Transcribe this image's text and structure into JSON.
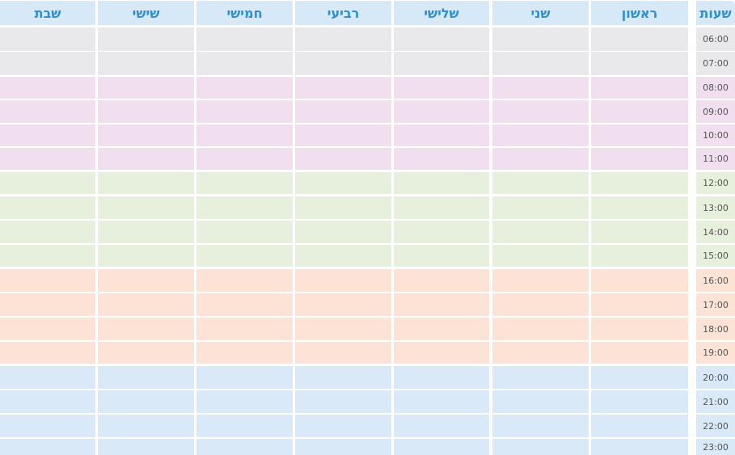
{
  "header": {
    "time_column": "שעות",
    "days": [
      "ראשון",
      "שני",
      "שלישי",
      "רביעי",
      "חמישי",
      "שישי",
      "שבת"
    ]
  },
  "times": [
    "06:00",
    "07:00",
    "08:00",
    "09:00",
    "10:00",
    "11:00",
    "12:00",
    "13:00",
    "14:00",
    "15:00",
    "16:00",
    "17:00",
    "18:00",
    "19:00",
    "20:00",
    "21:00",
    "22:00",
    "23:00"
  ],
  "row_colors": [
    "#e9e9eb",
    "#e9e9eb",
    "#f1deee",
    "#f1deee",
    "#f1deee",
    "#f1deee",
    "#e6f0dd",
    "#e6f0dd",
    "#e6f0dd",
    "#e6f0dd",
    "#fde2d6",
    "#fde2d6",
    "#fde2d6",
    "#fde2d6",
    "#d9e9f8",
    "#d9e9f8",
    "#d9e9f8",
    "#d9e9f8"
  ],
  "colors": {
    "header_bg": "#d7e8f7",
    "header_text": "#2a8fd6",
    "time_text": "#555555"
  }
}
